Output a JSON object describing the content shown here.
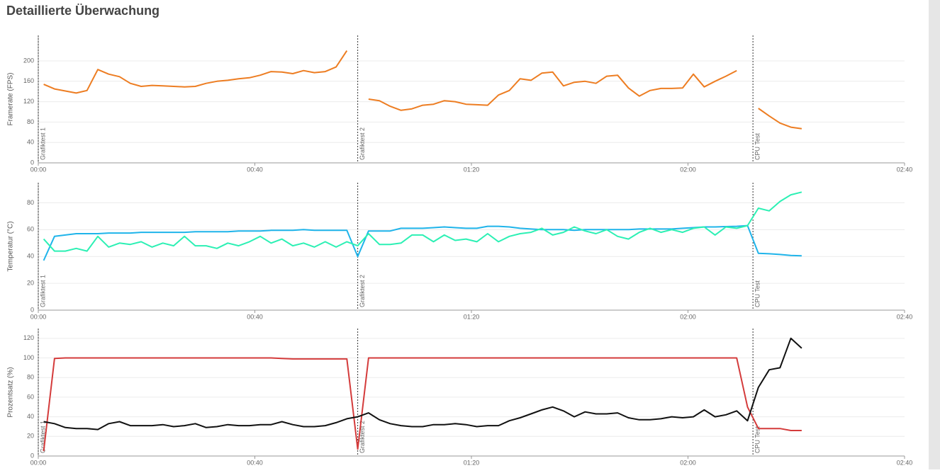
{
  "title": "Detaillierte Überwachung",
  "chart_data": [
    {
      "type": "line",
      "ylabel": "Framerate (FPS)",
      "ylim": [
        0,
        250
      ],
      "yticks": [
        0,
        40,
        80,
        120,
        160,
        200
      ],
      "xlim": [
        0,
        160
      ],
      "xticks": [
        {
          "value": 0,
          "label": "00:00"
        },
        {
          "value": 40,
          "label": "00:40"
        },
        {
          "value": 80,
          "label": "01:20"
        },
        {
          "value": 120,
          "label": "02:00"
        },
        {
          "value": 160,
          "label": "02:40"
        }
      ],
      "grid": true,
      "markers": [
        {
          "x": 0,
          "label": "Grafiktest 1"
        },
        {
          "x": 59,
          "label": "Grafiktest 2"
        },
        {
          "x": 132,
          "label": "CPU Test"
        }
      ],
      "x": [
        1,
        3,
        5,
        7,
        9,
        11,
        13,
        15,
        17,
        19,
        21,
        23,
        25,
        27,
        29,
        31,
        33,
        35,
        37,
        39,
        41,
        43,
        45,
        47,
        49,
        51,
        53,
        55,
        57,
        59,
        61,
        63,
        65,
        67,
        69,
        71,
        73,
        75,
        77,
        79,
        81,
        83,
        85,
        87,
        89,
        91,
        93,
        95,
        97,
        99,
        101,
        103,
        105,
        107,
        109,
        111,
        113,
        115,
        117,
        119,
        121,
        123,
        125,
        127,
        129,
        131,
        133,
        135,
        137,
        139,
        141
      ],
      "series": [
        {
          "color": "#ed7d22",
          "values": [
            154,
            145,
            141,
            137,
            142,
            183,
            174,
            169,
            156,
            150,
            152,
            151,
            150,
            149,
            150,
            156,
            160,
            162,
            165,
            167,
            172,
            179,
            178,
            175,
            181,
            177,
            179,
            188,
            220,
            null,
            125,
            122,
            111,
            103,
            106,
            113,
            115,
            122,
            120,
            115,
            114,
            113,
            133,
            142,
            165,
            162,
            176,
            178,
            151,
            158,
            160,
            156,
            170,
            172,
            147,
            131,
            142,
            146,
            146,
            147,
            174,
            149,
            160,
            170,
            181,
            null,
            107,
            92,
            78,
            70,
            67
          ]
        }
      ]
    },
    {
      "type": "line",
      "ylabel": "Temperatur (°C)",
      "ylim": [
        0,
        95
      ],
      "yticks": [
        0,
        20,
        40,
        60,
        80
      ],
      "xlim": [
        0,
        160
      ],
      "xticks": [
        {
          "value": 0,
          "label": "00:00"
        },
        {
          "value": 40,
          "label": "00:40"
        },
        {
          "value": 80,
          "label": "01:20"
        },
        {
          "value": 120,
          "label": "02:00"
        },
        {
          "value": 160,
          "label": "02:40"
        }
      ],
      "grid": true,
      "markers": [
        {
          "x": 0,
          "label": "Grafiktest 1"
        },
        {
          "x": 59,
          "label": "Grafiktest 2"
        },
        {
          "x": 132,
          "label": "CPU Test"
        }
      ],
      "x": [
        1,
        3,
        5,
        7,
        9,
        11,
        13,
        15,
        17,
        19,
        21,
        23,
        25,
        27,
        29,
        31,
        33,
        35,
        37,
        39,
        41,
        43,
        45,
        47,
        49,
        51,
        53,
        55,
        57,
        59,
        61,
        63,
        65,
        67,
        69,
        71,
        73,
        75,
        77,
        79,
        81,
        83,
        85,
        87,
        89,
        91,
        93,
        95,
        97,
        99,
        101,
        103,
        105,
        107,
        109,
        111,
        113,
        115,
        117,
        119,
        121,
        123,
        125,
        127,
        129,
        131,
        133,
        135,
        137,
        139,
        141
      ],
      "series": [
        {
          "color": "#1fb4ea",
          "values": [
            37,
            55,
            56,
            57,
            57,
            57,
            57.5,
            57.5,
            57.5,
            58,
            58,
            58,
            58,
            58,
            58.5,
            58.5,
            58.5,
            58.5,
            59,
            59,
            59,
            59.5,
            59.5,
            59.5,
            60,
            59.5,
            59.5,
            59.5,
            59.5,
            40,
            59,
            59,
            59,
            61,
            61,
            61,
            61.5,
            62,
            61.5,
            61,
            61,
            62.5,
            62.5,
            62,
            61,
            60.5,
            60,
            60,
            60,
            59.5,
            60,
            60,
            60,
            60,
            60,
            60.5,
            60.5,
            60.5,
            60.5,
            61,
            61.5,
            62,
            62,
            62.3,
            62.5,
            63,
            42.4,
            42,
            41.5,
            40.8,
            40.5
          ]
        },
        {
          "color": "#2cf0b4",
          "values": [
            53,
            44,
            44,
            46,
            44,
            55,
            47,
            50,
            49,
            51,
            47,
            50,
            48,
            55,
            48,
            48,
            46,
            50,
            48,
            51,
            55,
            50,
            53,
            48,
            50,
            47,
            51,
            47,
            51,
            48,
            57,
            49,
            49,
            50,
            56,
            56,
            51,
            56,
            52,
            53,
            51,
            57,
            51,
            55,
            57,
            58,
            61,
            56,
            58,
            62,
            59,
            57,
            60,
            55,
            53,
            58,
            61,
            58,
            60,
            58,
            61,
            62,
            56,
            62,
            61,
            63,
            76,
            74,
            81,
            86,
            88
          ]
        }
      ]
    },
    {
      "type": "line",
      "ylabel": "Prozentsatz (%)",
      "ylim": [
        0,
        130
      ],
      "yticks": [
        0,
        20,
        40,
        60,
        80,
        100,
        120
      ],
      "xlim": [
        0,
        160
      ],
      "xticks": [
        {
          "value": 0,
          "label": "00:00"
        },
        {
          "value": 40,
          "label": "00:40"
        },
        {
          "value": 80,
          "label": "01:20"
        },
        {
          "value": 120,
          "label": "02:00"
        },
        {
          "value": 160,
          "label": "02:40"
        }
      ],
      "grid": true,
      "markers": [
        {
          "x": 0,
          "label": "Grafiktest 1"
        },
        {
          "x": 59,
          "label": "Grafiktest 2"
        },
        {
          "x": 132,
          "label": "CPU Test"
        }
      ],
      "x": [
        1,
        3,
        5,
        7,
        9,
        11,
        13,
        15,
        17,
        19,
        21,
        23,
        25,
        27,
        29,
        31,
        33,
        35,
        37,
        39,
        41,
        43,
        45,
        47,
        49,
        51,
        53,
        55,
        57,
        59,
        61,
        63,
        65,
        67,
        69,
        71,
        73,
        75,
        77,
        79,
        81,
        83,
        85,
        87,
        89,
        91,
        93,
        95,
        97,
        99,
        101,
        103,
        105,
        107,
        109,
        111,
        113,
        115,
        117,
        119,
        121,
        123,
        125,
        127,
        129,
        131,
        133,
        135,
        137,
        139,
        141
      ],
      "series": [
        {
          "color": "#d43b3b",
          "values": [
            5,
            99.5,
            100,
            100,
            100,
            100,
            100,
            100,
            100,
            100,
            100,
            100,
            100,
            100,
            100,
            100,
            100,
            100,
            100,
            100,
            100,
            100,
            99.5,
            99,
            99,
            99,
            99,
            99,
            99,
            7,
            100,
            100,
            100,
            100,
            100,
            100,
            100,
            100,
            100,
            100,
            100,
            100,
            100,
            100,
            100,
            100,
            100,
            100,
            100,
            100,
            100,
            100,
            100,
            100,
            100,
            100,
            100,
            100,
            100,
            100,
            100,
            100,
            100,
            100,
            100,
            50,
            28,
            28,
            28,
            26,
            26
          ]
        },
        {
          "color": "#111111",
          "values": [
            35,
            33,
            29,
            28,
            28,
            27,
            33,
            35,
            31,
            31,
            31,
            32,
            30,
            31,
            33,
            29,
            30,
            32,
            31,
            31,
            32,
            32,
            35,
            32,
            30,
            30,
            31,
            34,
            38,
            40,
            44,
            37,
            33,
            31,
            30,
            30,
            32,
            32,
            33,
            32,
            30,
            31,
            31,
            36,
            39,
            43,
            47,
            50,
            46,
            40,
            45,
            43,
            43,
            44,
            39,
            37,
            37,
            38,
            40,
            39,
            40,
            47,
            40,
            42,
            46,
            36,
            70,
            88,
            90,
            120,
            110
          ]
        }
      ]
    }
  ]
}
